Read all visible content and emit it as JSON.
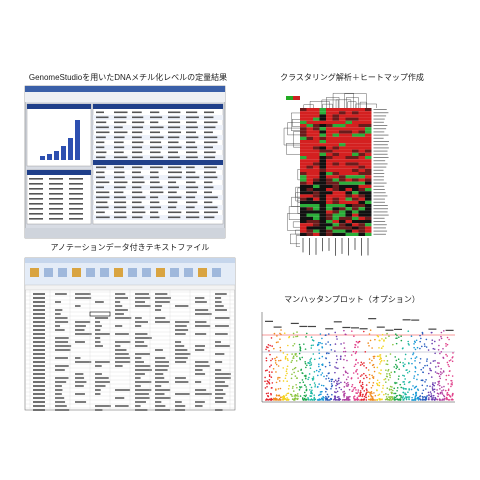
{
  "panels": [
    {
      "caption": "GenomeStudioを用いたDNAメチル化レベルの定量結果"
    },
    {
      "caption": "クラスタリング解析＋ヒートマップ作成"
    },
    {
      "caption": "アノテーションデータ付きテキストファイル"
    },
    {
      "caption": "マンハッタンプロット（オプション）"
    }
  ]
}
